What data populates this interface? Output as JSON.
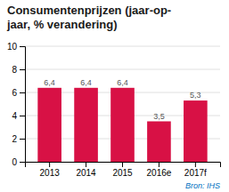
{
  "chart_data": {
    "type": "bar",
    "title": "Consumentenprijzen (jaar-op-\njaar, % verandering)",
    "categories": [
      "2013",
      "2014",
      "2015",
      "2016e",
      "2017f"
    ],
    "values": [
      6.4,
      6.4,
      6.4,
      3.5,
      5.3
    ],
    "value_labels": [
      "6,4",
      "6,4",
      "6,4",
      "3,5",
      "5,3"
    ],
    "data_labels": true,
    "color": "#d81145",
    "ylim": [
      0,
      10
    ],
    "yticks": [
      0,
      2,
      4,
      6,
      8,
      10
    ],
    "grid": true,
    "annotations": [
      "Bron: IHS"
    ]
  }
}
